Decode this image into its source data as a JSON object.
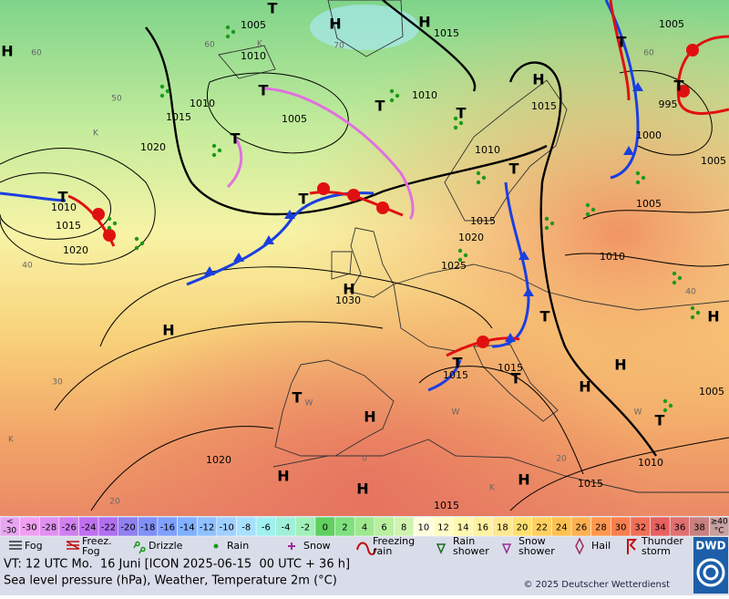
{
  "map": {
    "pressure_labels": [
      "1005",
      "1010",
      "1015",
      "1010",
      "1015",
      "1005",
      "1010",
      "1020",
      "1015",
      "1010",
      "1010",
      "1015",
      "1020",
      "1015",
      "1020",
      "1025",
      "1030",
      "1015",
      "1015",
      "1020",
      "1015",
      "1015",
      "1010",
      "1010",
      "1005",
      "1005",
      "995",
      "1000",
      "1005",
      "1005"
    ],
    "system_labels": [
      "H",
      "H",
      "H",
      "H",
      "T",
      "T",
      "T",
      "T",
      "T",
      "T",
      "T",
      "T",
      "T",
      "H",
      "H",
      "T",
      "T",
      "T",
      "H",
      "H",
      "T",
      "H",
      "T",
      "H",
      "H",
      "H",
      "H",
      "T"
    ],
    "temperature_labels": [
      "60",
      "60",
      "70",
      "50",
      "40",
      "30",
      "20",
      "0",
      "20",
      "40",
      "60",
      "K",
      "K",
      "K",
      "K",
      "W",
      "W",
      "W"
    ]
  },
  "scale": {
    "under_label": "<",
    "under_value": "-30",
    "under_color": "#e6a6f0",
    "values": [
      "-30",
      "-28",
      "-26",
      "-24",
      "-22",
      "-20",
      "-18",
      "-16",
      "-14",
      "-12",
      "-10",
      "-8",
      "-6",
      "-4",
      "-2",
      "0",
      "2",
      "4",
      "6",
      "8",
      "10",
      "12",
      "14",
      "16",
      "18",
      "20",
      "22",
      "24",
      "26",
      "28",
      "30",
      "32",
      "34",
      "36",
      "38"
    ],
    "colors": [
      "#f0a0f0",
      "#e090f0",
      "#d080f0",
      "#c070f0",
      "#b070f0",
      "#9080f0",
      "#8090f8",
      "#80a0ff",
      "#80b0ff",
      "#90c0ff",
      "#a0d0ff",
      "#a8e0ff",
      "#a0f0f0",
      "#a0f0d8",
      "#a0f0b8",
      "#60d060",
      "#80e080",
      "#a0e890",
      "#b8f0a0",
      "#d0f4b0",
      "#ffffe0",
      "#fffcc8",
      "#fff8b0",
      "#fff2a0",
      "#ffe890",
      "#ffe070",
      "#ffd060",
      "#ffc050",
      "#ffb050",
      "#ff9850",
      "#f88050",
      "#f07058",
      "#e86060",
      "#e07070",
      "#c88080"
    ],
    "over_label": "≥40",
    "over_unit": "°C",
    "over_color": "#c8a0a0"
  },
  "legend": [
    {
      "lines": [
        "Fog"
      ]
    },
    {
      "lines": [
        "Freez.",
        "Fog"
      ]
    },
    {
      "lines": [
        "Drizzle"
      ]
    },
    {
      "lines": [
        "Rain"
      ]
    },
    {
      "lines": [
        "Snow"
      ]
    },
    {
      "lines": [
        "Freezing",
        "rain"
      ]
    },
    {
      "lines": [
        "Rain",
        "shower"
      ]
    },
    {
      "lines": [
        "Snow",
        "shower"
      ]
    },
    {
      "lines": [
        "Hail"
      ]
    },
    {
      "lines": [
        "Thunder",
        "storm"
      ]
    }
  ],
  "logo": "DWD",
  "footer": {
    "valid_time": "VT: 12 UTC Mo.  16 Juni [ICON 2025-06-15  00 UTC + 36 h]",
    "description": "Sea level pressure (hPa), Weather, Temperature 2m (°C)",
    "copyright": "© 2025 Deutscher Wetterdienst"
  }
}
